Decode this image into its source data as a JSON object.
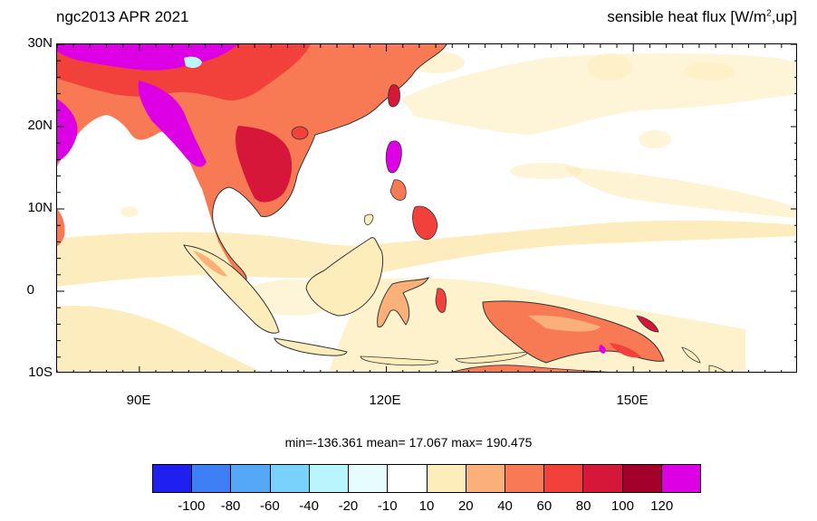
{
  "header": {
    "left_title": "ngc2013 APR 2021",
    "right_title_prefix": "sensible heat flux [W/m",
    "right_title_sup": "2",
    "right_title_suffix": ",up]"
  },
  "axes": {
    "lat_labels": [
      "30N",
      "20N",
      "10N",
      "0",
      "10S"
    ],
    "lon_labels": [
      "90E",
      "120E",
      "150E"
    ],
    "lon_range": [
      80,
      170
    ],
    "lat_range": [
      -10,
      30
    ]
  },
  "stats": {
    "text": "min=-136.361  mean=  17.067  max= 190.475"
  },
  "colorbar": {
    "colors": [
      "#1f20f0",
      "#3f7ff5",
      "#55a7f8",
      "#79d2fb",
      "#b8f5fd",
      "#e6fcff",
      "#ffffff",
      "#fdedbb",
      "#fbb07a",
      "#f77a55",
      "#f2413a",
      "#d6173a",
      "#a3002b",
      "#dd00e5"
    ],
    "labels": [
      "-100",
      "-80",
      "-60",
      "-40",
      "-20",
      "-10",
      "10",
      "20",
      "40",
      "60",
      "80",
      "100",
      "120"
    ]
  },
  "colors": {
    "coastline": "#333333",
    "land_warm": "#f77a55",
    "land_hot": "#f2413a",
    "extreme": "#dd00e5",
    "ocean_light": "#fdedbb"
  }
}
